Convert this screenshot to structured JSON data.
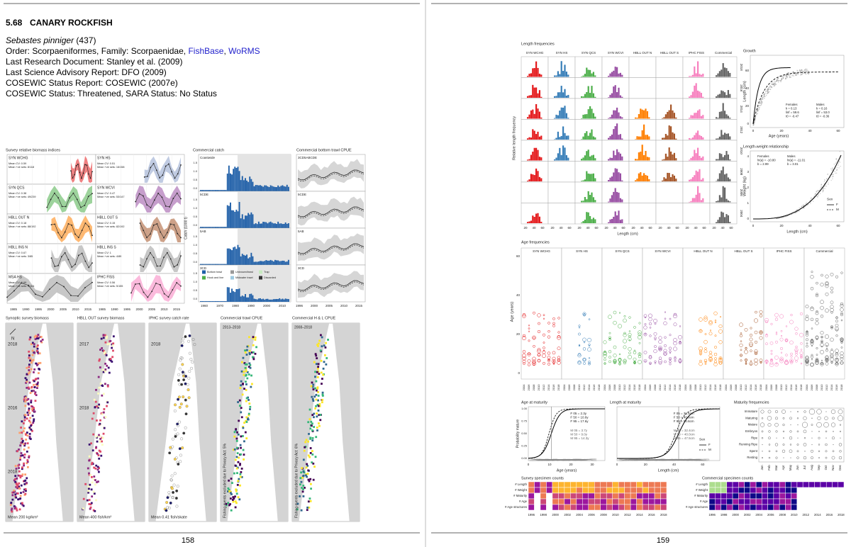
{
  "left_page": {
    "heading": {
      "number": "5.68",
      "title": "CANARY ROCKFISH"
    },
    "species": {
      "name": "Sebastes pinniger",
      "code": "(437)"
    },
    "order_line": {
      "text": "Order: Scorpaeniformes, Family: Scorpaenidae, ",
      "links": [
        "FishBase",
        "WoRMS"
      ]
    },
    "info": [
      "Last Research Document: Stanley et al. (2009)",
      "Last Science Advisory Report: DFO (2009)",
      "COSEWIC Status Report: COSEWIC (2007e)",
      "COSEWIC Status: Threatened, SARA Status: No Status"
    ],
    "survey_indices": {
      "title": "Survey relative biomass indices",
      "panels": [
        {
          "name": "SYN WCHG",
          "cv": "Mean CV: 0.59",
          "sets": "Mean +ve sets: 8/118"
        },
        {
          "name": "SYN HS",
          "cv": "Mean CV: 0.51",
          "sets": "Mean +ve sets: 16/158"
        },
        {
          "name": "SYN QCS",
          "cv": "Mean CV: 0.38",
          "sets": "Mean +ve sets: 49/239"
        },
        {
          "name": "SYN WCVI",
          "cv": "Mean CV: 0.47",
          "sets": "Mean +ve sets: 53/147"
        },
        {
          "name": "HBLL OUT N",
          "cv": "Mean CV: 0.18",
          "sets": "Mean +ve sets: 88/192"
        },
        {
          "name": "HBLL OUT S",
          "cv": "Mean CV: 0.15",
          "sets": "Mean +ve sets: 82/192"
        },
        {
          "name": "HBLL INS N",
          "cv": "Mean CV: 0.67",
          "sets": "Mean +ve sets: 3/85"
        },
        {
          "name": "HBLL INS S",
          "cv": "Mean CV: 1",
          "sets": "Mean +ve sets: 4/89"
        },
        {
          "name": "MSA HS",
          "cv": "Mean CV: 0.69",
          "sets": "Mean +ve sets: 5/104"
        },
        {
          "name": "IPHC FISS",
          "cv": "Mean CV: 0.56",
          "sets": "Mean +ve sets: 5/155"
        }
      ],
      "xticks": [
        "1985",
        "1990",
        "1995",
        "2000",
        "2005",
        "2010",
        "2015"
      ]
    },
    "commercial_catch": {
      "title": "Commercial catch",
      "ylabel": "Catch (1000 t)",
      "regions": [
        "Coastwide",
        "5CDE",
        "5AB",
        "3CD"
      ],
      "yticks": [
        "0.0",
        "0.5",
        "1.0",
        "1.5"
      ],
      "xticks": [
        "1960",
        "1970",
        "1980",
        "1990",
        "2000",
        "2010"
      ],
      "legend": [
        "Bottom trawl",
        "Hook and line",
        "Unknown/trawl",
        "Midwater trawl",
        "Trap",
        "Discarded"
      ]
    },
    "cpue": {
      "title": "Commercial bottom trawl CPUE",
      "regions": [
        "3CD5ABCDE",
        "5CDE",
        "5AB",
        "3CD"
      ],
      "xticks": [
        "1996",
        "2000",
        "2005",
        "2010",
        "2015"
      ]
    },
    "maps": [
      {
        "title": "Synoptic survey biomass",
        "years": [
          "2018",
          "2016",
          "2018"
        ],
        "footer": "Mean 200 kg/km²",
        "north": "N"
      },
      {
        "title": "HBLL OUT survey biomass",
        "years": [
          "2017",
          "2018"
        ],
        "footer": "Mean 400 fish/km²"
      },
      {
        "title": "IPHC survey catch rate",
        "years": [
          "2018"
        ],
        "footer": "Mean 0.41 fish/skate"
      },
      {
        "title": "Commercial trawl CPUE",
        "subtitle": "2013–2018",
        "note": "Fishing events excluded due to Privacy Act: 5%"
      },
      {
        "title": "Commercial H & L CPUE",
        "subtitle": "2008–2018",
        "note": "Fishing events excluded due to Privacy Act: 6%"
      }
    ],
    "page_number": "158"
  },
  "right_page": {
    "columns": [
      "SYN WCHG",
      "SYN HS",
      "SYN QCS",
      "SYN WCVI",
      "HBLL OUT N",
      "HBLL OUT S",
      "IPHC FISS",
      "Commercial"
    ],
    "length_frequencies": {
      "title": "Length frequencies",
      "ylabel": "Relative length frequency",
      "xlabel": "Length (cm)",
      "years": [
        "2018",
        "2016",
        "2014",
        "2012",
        "2010",
        "2008",
        "2006",
        "2004"
      ],
      "xticks": [
        "20",
        "40",
        "60"
      ]
    },
    "growth": {
      "title": "Growth",
      "ylabel": "Length (cm)",
      "xlabel": "Age (years)",
      "yticks": [
        "0",
        "20",
        "40",
        "60"
      ],
      "xticks": [
        "0",
        "20",
        "40",
        "60"
      ],
      "females": [
        "Females",
        "k = 0.13",
        "linf = 59.6",
        "t0 = -0.47"
      ],
      "males": [
        "Males",
        "k = 0.16",
        "linf = 53.0",
        "t0 = -0.36"
      ]
    },
    "length_weight": {
      "title": "Length-weight relationship",
      "ylabel": "Weight (kg)",
      "xlabel": "Length (cm)",
      "yticks": [
        "0",
        "1",
        "2",
        "3",
        "4"
      ],
      "xticks": [
        "0",
        "20",
        "40",
        "60"
      ],
      "females": [
        "Females",
        "ln(a) = -10.80",
        "b = 2.99"
      ],
      "males": [
        "Males",
        "ln(a) = -11.01",
        "b = 3.01"
      ],
      "legend": {
        "title": "Sex",
        "items": [
          "F",
          "M"
        ]
      }
    },
    "age_frequencies": {
      "title": "Age frequencies",
      "ylabel": "Age (years)",
      "yticks": [
        "0",
        "20",
        "40",
        "60"
      ],
      "years": [
        "2004",
        "2006",
        "2008",
        "2010",
        "2012",
        "2014",
        "2016",
        "2018"
      ]
    },
    "age_maturity": {
      "title": "Age at maturity",
      "ylabel": "Probability mature",
      "xlabel": "Age (years)",
      "yticks": [
        "0.00",
        "0.25",
        "0.50",
        "0.75",
        "1.00"
      ],
      "xticks": [
        "0",
        "10",
        "20",
        "30"
      ],
      "females": [
        "F 05 = 2.3y",
        "F 50 = 10.6y",
        "F 95 = 17.6y"
      ],
      "males": [
        "M 05 = 3.7y",
        "M 50 = 9.0y",
        "M 95 = 14.3y"
      ]
    },
    "length_maturity": {
      "title": "Length at maturity",
      "xlabel": "Length (cm)",
      "xticks": [
        "0",
        "20",
        "40",
        "60"
      ],
      "females": [
        "F 05 = 31.5cm",
        "F 50 = 40.8cm",
        "F 95 = 50.6cm"
      ],
      "males": [
        "M 05 = 32.4cm",
        "M 50 = 40.0cm",
        "M 95 = 47.5cm"
      ],
      "legend": {
        "title": "Sex",
        "items": [
          "F",
          "M"
        ]
      }
    },
    "maturity_frequencies": {
      "title": "Maturity frequencies",
      "stages": [
        "Immature",
        "Maturing",
        "Mature",
        "Embryos",
        "Ripe",
        "Running Ripe",
        "Spent",
        "Resting"
      ],
      "months": [
        "Jan",
        "Feb",
        "Mar",
        "Apr",
        "May",
        "Jun",
        "Jul",
        "Aug",
        "Sep",
        "Oct",
        "Nov",
        "Dec"
      ]
    },
    "specimen_counts": {
      "rows": [
        "# Length",
        "# Weight",
        "# Maturity",
        "# Age",
        "# Age structures"
      ],
      "years": [
        "1996",
        "1998",
        "2000",
        "2002",
        "2004",
        "2006",
        "2008",
        "2010",
        "2012",
        "2014",
        "2016",
        "2018"
      ],
      "survey_title": "Survey specimen counts",
      "commercial_title": "Commercial specimen counts"
    },
    "page_number": "159"
  }
}
